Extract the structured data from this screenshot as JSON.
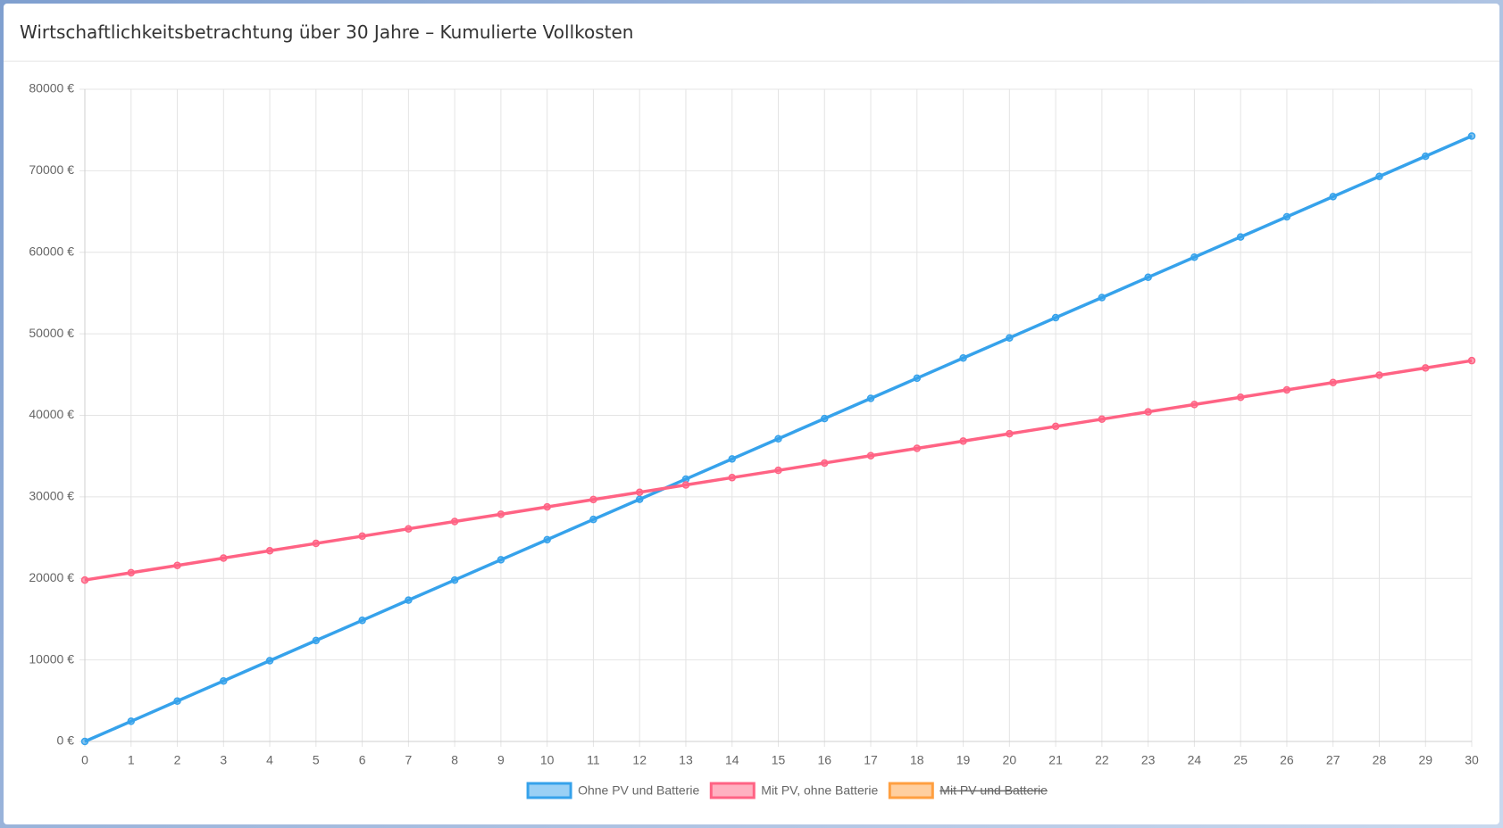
{
  "chart_data": {
    "type": "line",
    "title": "Wirtschaftlichkeitsbetrachtung über 30 Jahre – Kumulierte Vollkosten",
    "x": [
      0,
      1,
      2,
      3,
      4,
      5,
      6,
      7,
      8,
      9,
      10,
      11,
      12,
      13,
      14,
      15,
      16,
      17,
      18,
      19,
      20,
      21,
      22,
      23,
      24,
      25,
      26,
      27,
      28,
      29,
      30
    ],
    "xlim": [
      0,
      30
    ],
    "xticks": [
      0,
      1,
      2,
      3,
      4,
      5,
      6,
      7,
      8,
      9,
      10,
      11,
      12,
      13,
      14,
      15,
      16,
      17,
      18,
      19,
      20,
      21,
      22,
      23,
      24,
      25,
      26,
      27,
      28,
      29,
      30
    ],
    "ylim": [
      0,
      80000
    ],
    "yticks": [
      {
        "value": 0,
        "label": "0 €"
      },
      {
        "value": 10000,
        "label": "10000 €"
      },
      {
        "value": 20000,
        "label": "20000 €"
      },
      {
        "value": 30000,
        "label": "30000 €"
      },
      {
        "value": 40000,
        "label": "40000 €"
      },
      {
        "value": 50000,
        "label": "50000 €"
      },
      {
        "value": 60000,
        "label": "60000 €"
      },
      {
        "value": 70000,
        "label": "70000 €"
      },
      {
        "value": 80000,
        "label": "80000 €"
      }
    ],
    "grid": true,
    "legend": "bottom",
    "series": [
      {
        "name": "Ohne PV und Batterie",
        "color": "#36a2eb",
        "values": [
          0,
          2470,
          4950,
          7420,
          9900,
          12380,
          14850,
          17330,
          19800,
          22280,
          24750,
          27230,
          29700,
          32180,
          34650,
          37130,
          39600,
          42080,
          44550,
          47030,
          49500,
          51980,
          54450,
          56930,
          59400,
          61880,
          64350,
          66830,
          69300,
          71780,
          74250
        ]
      },
      {
        "name": "Mit PV, ohne Batterie",
        "color": "#ff6384",
        "values": [
          19800,
          20700,
          21590,
          22490,
          23390,
          24290,
          25180,
          26080,
          26980,
          27870,
          28770,
          29670,
          30560,
          31460,
          32360,
          33250,
          34150,
          35050,
          35950,
          36840,
          37740,
          38640,
          39530,
          40430,
          41330,
          42220,
          43120,
          44020,
          44920,
          45810,
          46710
        ]
      },
      {
        "name": "Mit PV und Batterie",
        "color": "#ff9f40",
        "hidden": true
      }
    ]
  }
}
